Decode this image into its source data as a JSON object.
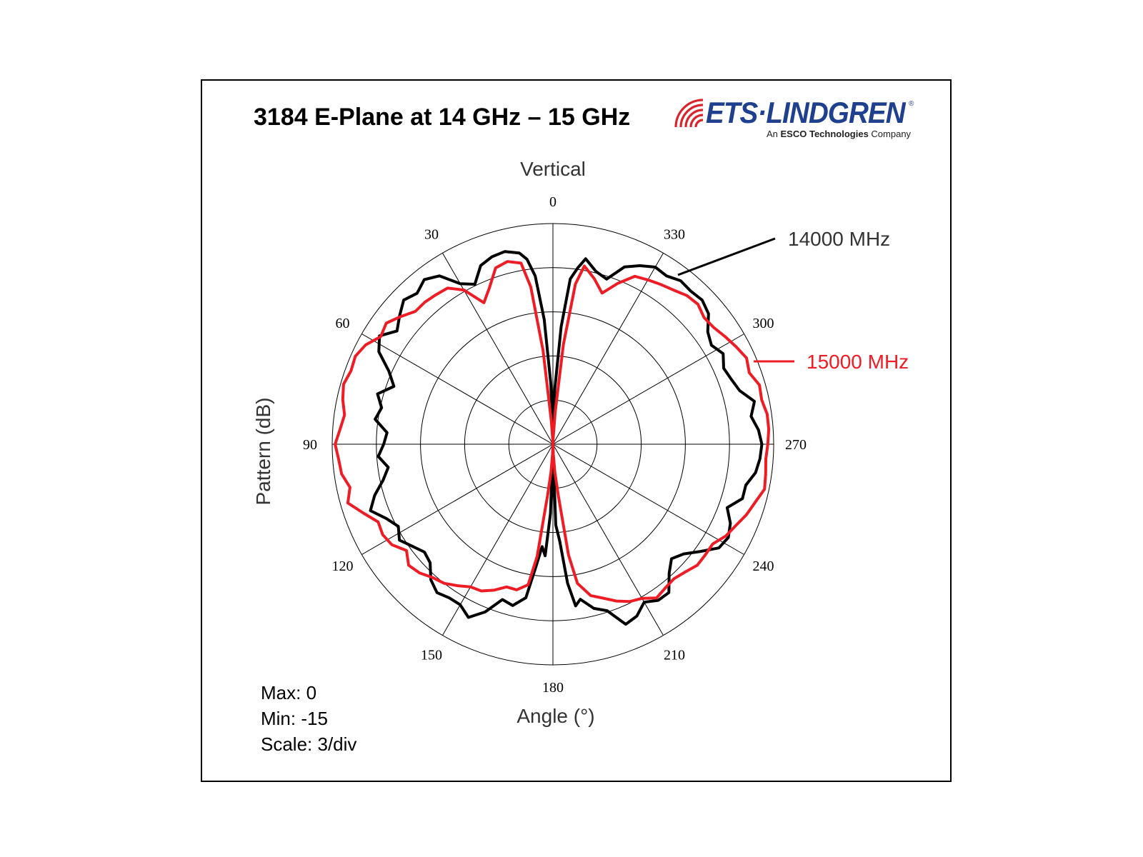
{
  "header": {
    "title": "3184 E-Plane at 14 GHz – 15 GHz",
    "logo_brand": "ETS·LINDGREN",
    "logo_tagline_prefix": "An ",
    "logo_tagline_bold": "ESCO Technologies",
    "logo_tagline_suffix": " Company",
    "logo_registered": "®",
    "logo_color": "#1f3f8f",
    "logo_wave_color": "#d9242b"
  },
  "stats": {
    "max": "Max: 0",
    "min": "Min: -15",
    "scale": "Scale: 3/div"
  },
  "chart_data": {
    "type": "polar",
    "title": "Vertical",
    "xlabel": "Angle (°)",
    "ylabel": "Pattern (dB)",
    "r_range": [
      -15,
      0
    ],
    "r_ticks": [
      -15,
      -12,
      -9,
      -6,
      -3,
      0
    ],
    "angle_direction": "counterclockwise",
    "angle_zero": "top",
    "angle_ticks": [
      "0",
      "30",
      "60",
      "90",
      "120",
      "150",
      "180",
      "210",
      "240",
      "270",
      "300",
      "330"
    ],
    "grid": true,
    "series": [
      {
        "name": "14000 MHz",
        "color": "#000000",
        "angles": [
          0,
          2,
          4,
          6,
          8,
          10,
          14,
          18,
          22,
          26,
          30,
          34,
          38,
          42,
          46,
          50,
          54,
          58,
          62,
          66,
          70,
          74,
          78,
          82,
          86,
          90,
          94,
          98,
          102,
          106,
          110,
          114,
          118,
          122,
          126,
          130,
          134,
          138,
          142,
          146,
          150,
          154,
          158,
          162,
          166,
          170,
          172,
          174,
          176,
          178,
          180,
          182,
          184,
          186,
          188,
          190,
          194,
          198,
          202,
          206,
          210,
          214,
          218,
          222,
          226,
          230,
          234,
          238,
          242,
          246,
          250,
          254,
          258,
          262,
          266,
          270,
          274,
          278,
          282,
          286,
          290,
          294,
          298,
          302,
          306,
          310,
          314,
          318,
          322,
          326,
          330,
          334,
          338,
          342,
          346,
          350,
          352,
          354,
          356,
          358,
          360
        ],
        "values": [
          -14.6,
          -10.9,
          -6.5,
          -3.5,
          -2.3,
          -1.8,
          -1.5,
          -1.6,
          -1.9,
          -2.9,
          -2.4,
          -1.2,
          -0.8,
          -1.2,
          -0.9,
          -1.4,
          -1.9,
          -1.1,
          -1.6,
          -2.8,
          -3.5,
          -2.6,
          -3.1,
          -2.8,
          -3.7,
          -3.5,
          -3.1,
          -3.7,
          -3.2,
          -2.4,
          -1.8,
          -2.6,
          -3.1,
          -2.7,
          -3.2,
          -3.6,
          -3.4,
          -2.6,
          -2.2,
          -2.4,
          -2.4,
          -1.9,
          -2.7,
          -3.9,
          -3.7,
          -4.4,
          -6.5,
          -8.0,
          -7.4,
          -10.3,
          -14.8,
          -9.5,
          -8.4,
          -5.5,
          -3.9,
          -4.3,
          -3.5,
          -3.1,
          -1.8,
          -2.0,
          -2.6,
          -2.2,
          -2.2,
          -3.2,
          -3.8,
          -3.4,
          -2.6,
          -1.7,
          -1.5,
          -1.8,
          -2.4,
          -1.6,
          -1.6,
          -1.1,
          -0.9,
          -0.8,
          -1.0,
          -1.4,
          -1.0,
          -1.8,
          -2.1,
          -2.3,
          -1.9,
          -2.3,
          -2.0,
          -1.2,
          -0.9,
          -1.0,
          -0.9,
          -1.2,
          -1.1,
          -1.5,
          -2.0,
          -3.2,
          -2.9,
          -2.2,
          -2.9,
          -3.7,
          -7.0,
          -11.2,
          -14.6
        ]
      },
      {
        "name": "15000 MHz",
        "color": "#ee1c25",
        "angles": [
          0,
          2,
          4,
          6,
          8,
          10,
          14,
          18,
          22,
          26,
          30,
          34,
          38,
          42,
          46,
          50,
          54,
          58,
          62,
          66,
          70,
          74,
          78,
          82,
          86,
          90,
          94,
          98,
          102,
          106,
          110,
          114,
          118,
          122,
          126,
          130,
          134,
          138,
          142,
          146,
          150,
          154,
          158,
          162,
          166,
          170,
          172,
          174,
          176,
          178,
          180,
          182,
          184,
          186,
          188,
          190,
          194,
          198,
          202,
          206,
          210,
          214,
          218,
          222,
          226,
          230,
          234,
          238,
          242,
          246,
          250,
          254,
          258,
          262,
          266,
          270,
          274,
          278,
          282,
          286,
          290,
          294,
          298,
          302,
          306,
          310,
          314,
          318,
          322,
          326,
          330,
          334,
          338,
          342,
          346,
          350,
          352,
          354,
          356,
          358,
          360
        ],
        "values": [
          -15.0,
          -14.8,
          -13.4,
          -8.6,
          -4.2,
          -2.5,
          -2.2,
          -2.4,
          -3.5,
          -4.3,
          -2.9,
          -2.2,
          -2.1,
          -2.0,
          -2.0,
          -1.5,
          -1.0,
          -1.2,
          -0.6,
          -0.3,
          -0.4,
          -0.2,
          -0.4,
          -0.7,
          -0.5,
          -0.2,
          -0.4,
          -0.5,
          -0.9,
          -0.5,
          -1.3,
          -2.0,
          -1.9,
          -2.1,
          -2.7,
          -2.2,
          -2.4,
          -2.8,
          -3.0,
          -3.4,
          -3.8,
          -3.9,
          -4.3,
          -4.8,
          -4.8,
          -5.3,
          -7.3,
          -11.5,
          -13.1,
          -14.4,
          -15.0,
          -14.4,
          -13.1,
          -11.5,
          -7.4,
          -5.4,
          -4.4,
          -4.0,
          -3.5,
          -3.1,
          -2.9,
          -2.4,
          -2.6,
          -2.7,
          -2.5,
          -2.2,
          -2.2,
          -2.2,
          -1.7,
          -1.4,
          -1.0,
          -0.7,
          -0.3,
          -0.4,
          -0.5,
          -0.4,
          -0.3,
          -0.3,
          -0.5,
          -0.4,
          -0.8,
          -0.6,
          -0.9,
          -1.2,
          -1.5,
          -1.6,
          -1.3,
          -1.4,
          -1.7,
          -1.9,
          -2.1,
          -2.3,
          -3.2,
          -4.2,
          -3.4,
          -2.7,
          -4.0,
          -8.2,
          -12.8,
          -14.6,
          -15.0
        ]
      }
    ]
  }
}
